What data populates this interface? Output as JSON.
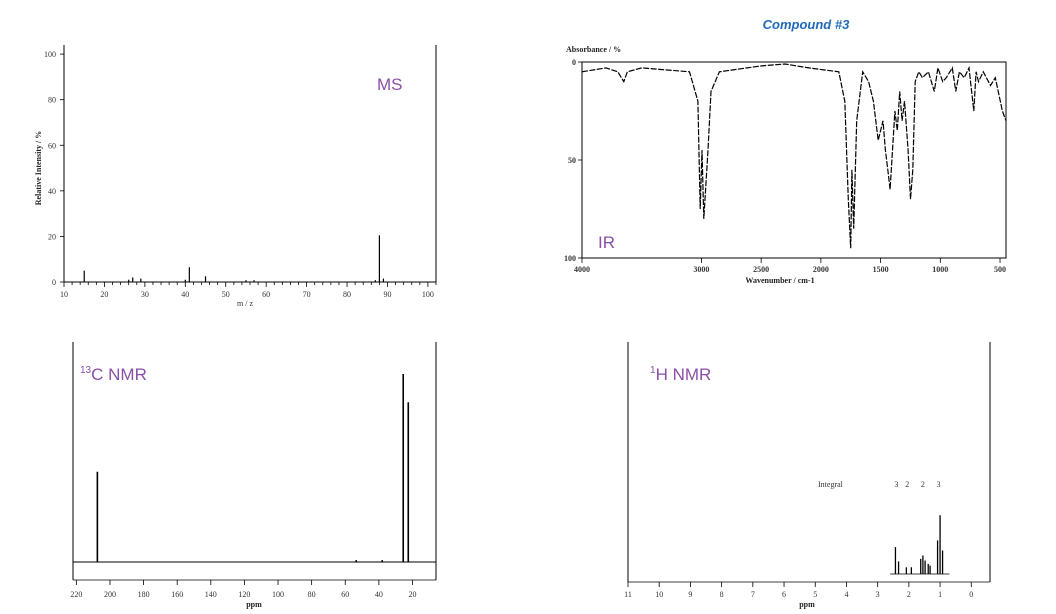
{
  "title": "Compound #3",
  "chart_data": [
    {
      "id": "ms",
      "type": "bar",
      "label": "MS",
      "xlabel": "m / z",
      "ylabel": "Relative Intensity / %",
      "xlim": [
        10,
        102
      ],
      "ylim": [
        0,
        104
      ],
      "xticks": [
        10,
        20,
        30,
        40,
        50,
        60,
        70,
        80,
        90,
        100
      ],
      "yticks": [
        0,
        20,
        40,
        60,
        80,
        100
      ],
      "peaks": [
        {
          "x": 15,
          "y": 5
        },
        {
          "x": 26,
          "y": 1
        },
        {
          "x": 27,
          "y": 2
        },
        {
          "x": 29,
          "y": 1.5
        },
        {
          "x": 40,
          "y": 1
        },
        {
          "x": 41,
          "y": 6.5
        },
        {
          "x": 45,
          "y": 2.5
        },
        {
          "x": 55,
          "y": 0.8
        },
        {
          "x": 57,
          "y": 0.8
        },
        {
          "x": 87,
          "y": 0.8
        },
        {
          "x": 88,
          "y": 20.5
        },
        {
          "x": 89,
          "y": 1.5
        }
      ]
    },
    {
      "id": "ir",
      "type": "line",
      "label": "IR",
      "xlabel": "Wavenumber / cm-1",
      "ylabel": "Absorbance / %",
      "xlim": [
        4000,
        450
      ],
      "ylim": [
        0,
        100
      ],
      "xticks": [
        4000,
        3000,
        2500,
        2000,
        1500,
        1000,
        500
      ],
      "yticks": [
        0,
        50,
        100
      ],
      "points": [
        [
          4000,
          5
        ],
        [
          3800,
          3
        ],
        [
          3700,
          5
        ],
        [
          3650,
          10
        ],
        [
          3620,
          5
        ],
        [
          3500,
          3
        ],
        [
          3100,
          5
        ],
        [
          3030,
          20
        ],
        [
          3010,
          75
        ],
        [
          2995,
          45
        ],
        [
          2980,
          80
        ],
        [
          2960,
          60
        ],
        [
          2945,
          45
        ],
        [
          2920,
          15
        ],
        [
          2850,
          5
        ],
        [
          2500,
          2
        ],
        [
          2300,
          1
        ],
        [
          2100,
          3
        ],
        [
          1850,
          5
        ],
        [
          1800,
          20
        ],
        [
          1770,
          70
        ],
        [
          1750,
          95
        ],
        [
          1740,
          55
        ],
        [
          1725,
          85
        ],
        [
          1700,
          30
        ],
        [
          1650,
          5
        ],
        [
          1600,
          10
        ],
        [
          1560,
          20
        ],
        [
          1520,
          40
        ],
        [
          1480,
          30
        ],
        [
          1460,
          45
        ],
        [
          1440,
          55
        ],
        [
          1420,
          65
        ],
        [
          1400,
          45
        ],
        [
          1380,
          25
        ],
        [
          1360,
          35
        ],
        [
          1340,
          15
        ],
        [
          1320,
          30
        ],
        [
          1300,
          20
        ],
        [
          1270,
          45
        ],
        [
          1250,
          70
        ],
        [
          1230,
          55
        ],
        [
          1210,
          10
        ],
        [
          1180,
          5
        ],
        [
          1150,
          8
        ],
        [
          1100,
          5
        ],
        [
          1050,
          15
        ],
        [
          1020,
          3
        ],
        [
          980,
          10
        ],
        [
          950,
          8
        ],
        [
          900,
          3
        ],
        [
          870,
          15
        ],
        [
          840,
          5
        ],
        [
          800,
          8
        ],
        [
          760,
          3
        ],
        [
          720,
          25
        ],
        [
          700,
          5
        ],
        [
          680,
          10
        ],
        [
          640,
          5
        ],
        [
          580,
          12
        ],
        [
          540,
          8
        ],
        [
          480,
          25
        ],
        [
          450,
          30
        ]
      ]
    },
    {
      "id": "c13",
      "type": "bar",
      "label": "13C NMR",
      "label_sup": "13",
      "label_rest": "C NMR",
      "xlabel": "ppm",
      "xlim": [
        222,
        6
      ],
      "ylim": [
        0,
        100
      ],
      "xticks": [
        220,
        200,
        180,
        160,
        140,
        120,
        100,
        80,
        60,
        40,
        20
      ],
      "peaks": [
        {
          "x": 207.5,
          "y": 48
        },
        {
          "x": 53.5,
          "y": 1
        },
        {
          "x": 38,
          "y": 1
        },
        {
          "x": 25.5,
          "y": 100
        },
        {
          "x": 22.5,
          "y": 85
        }
      ]
    },
    {
      "id": "h1",
      "type": "line",
      "label": "1H NMR",
      "label_sup": "1",
      "label_rest": "H NMR",
      "xlabel": "ppm",
      "xlim": [
        11,
        -0.6
      ],
      "ylim": [
        0,
        100
      ],
      "xticks": [
        11,
        10,
        9,
        8,
        7,
        6,
        5,
        4,
        3,
        2,
        1,
        0
      ],
      "integral_label": "Integral",
      "integrals": [
        {
          "x": 2.4,
          "text": "3"
        },
        {
          "x": 2.05,
          "text": "2"
        },
        {
          "x": 1.55,
          "text": "2"
        },
        {
          "x": 1.05,
          "text": "3"
        }
      ],
      "peaks": [
        {
          "x": 2.43,
          "y": 32
        },
        {
          "x": 2.33,
          "y": 15
        },
        {
          "x": 2.08,
          "y": 8
        },
        {
          "x": 1.92,
          "y": 8
        },
        {
          "x": 1.62,
          "y": 18
        },
        {
          "x": 1.55,
          "y": 22
        },
        {
          "x": 1.48,
          "y": 16
        },
        {
          "x": 1.38,
          "y": 12
        },
        {
          "x": 1.32,
          "y": 10
        },
        {
          "x": 1.08,
          "y": 40
        },
        {
          "x": 1.0,
          "y": 70
        },
        {
          "x": 0.92,
          "y": 28
        }
      ]
    }
  ]
}
